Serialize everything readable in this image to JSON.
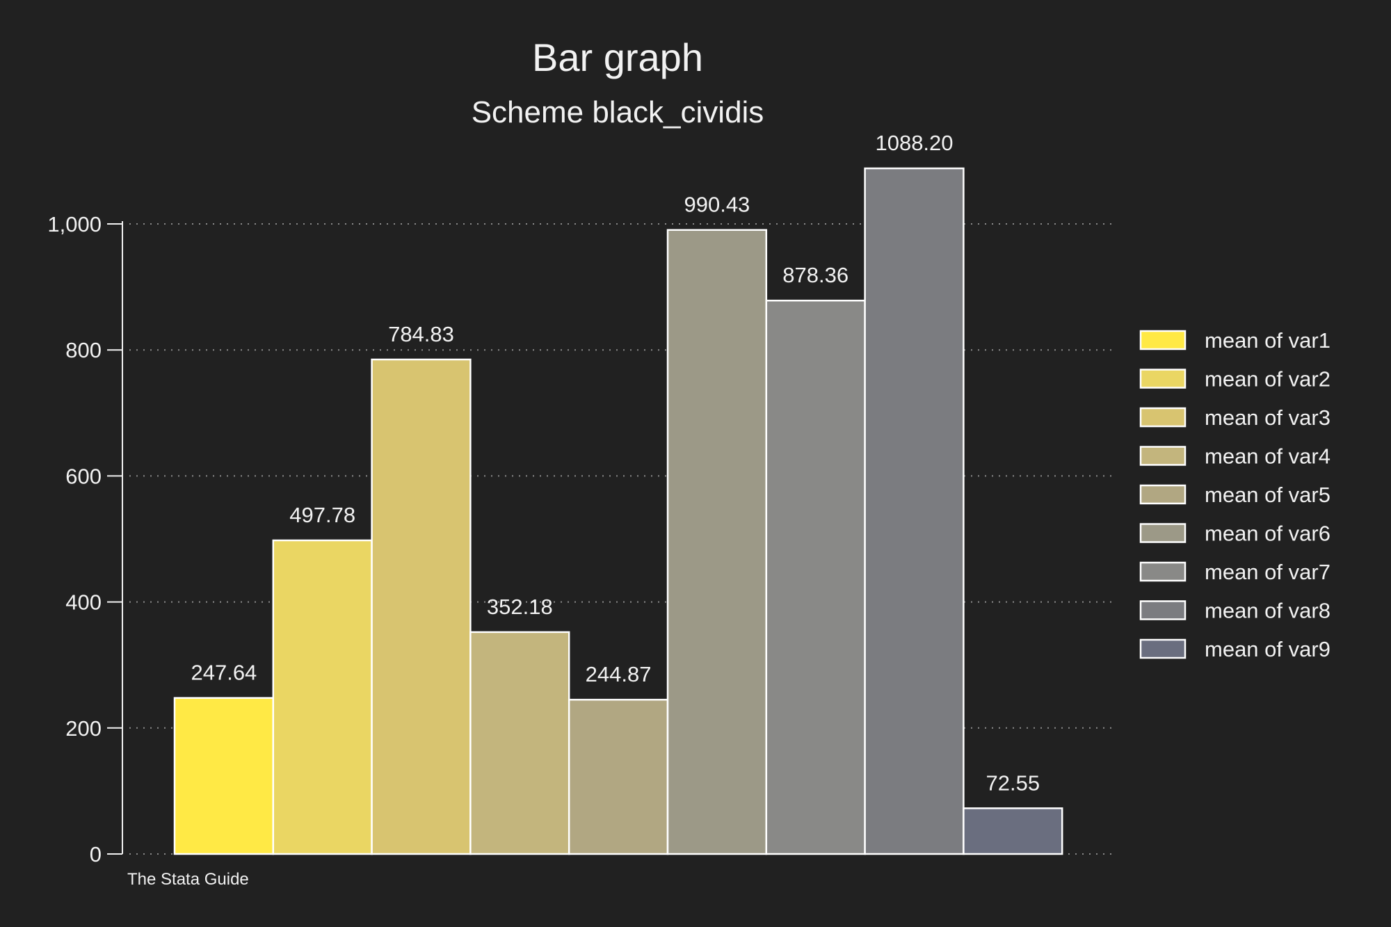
{
  "chart_data": {
    "type": "bar",
    "title": "Bar graph",
    "subtitle": "Scheme black_cividis",
    "note": "The Stata Guide",
    "ylim": [
      0,
      1100
    ],
    "yticks": [
      0,
      200,
      400,
      600,
      800,
      1000
    ],
    "ytick_labels": [
      "0",
      "200",
      "400",
      "600",
      "800",
      "1,000"
    ],
    "grid": true,
    "legend_position": "right",
    "series": [
      {
        "name": "mean of var1",
        "value": 247.64,
        "label": "247.64",
        "color": "#ffe945"
      },
      {
        "name": "mean of var2",
        "value": 497.78,
        "label": "497.78",
        "color": "#ead663"
      },
      {
        "name": "mean of var3",
        "value": 784.83,
        "label": "784.83",
        "color": "#d8c470"
      },
      {
        "name": "mean of var4",
        "value": 352.18,
        "label": "352.18",
        "color": "#c3b57d"
      },
      {
        "name": "mean of var5",
        "value": 244.87,
        "label": "244.87",
        "color": "#b1a782"
      },
      {
        "name": "mean of var6",
        "value": 990.43,
        "label": "990.43",
        "color": "#9c9987"
      },
      {
        "name": "mean of var7",
        "value": 878.36,
        "label": "878.36",
        "color": "#898987"
      },
      {
        "name": "mean of var8",
        "value": 1088.2,
        "label": "1088.20",
        "color": "#7b7c80"
      },
      {
        "name": "mean of var9",
        "value": 72.55,
        "label": "72.55",
        "color": "#6a6e7f"
      }
    ]
  }
}
